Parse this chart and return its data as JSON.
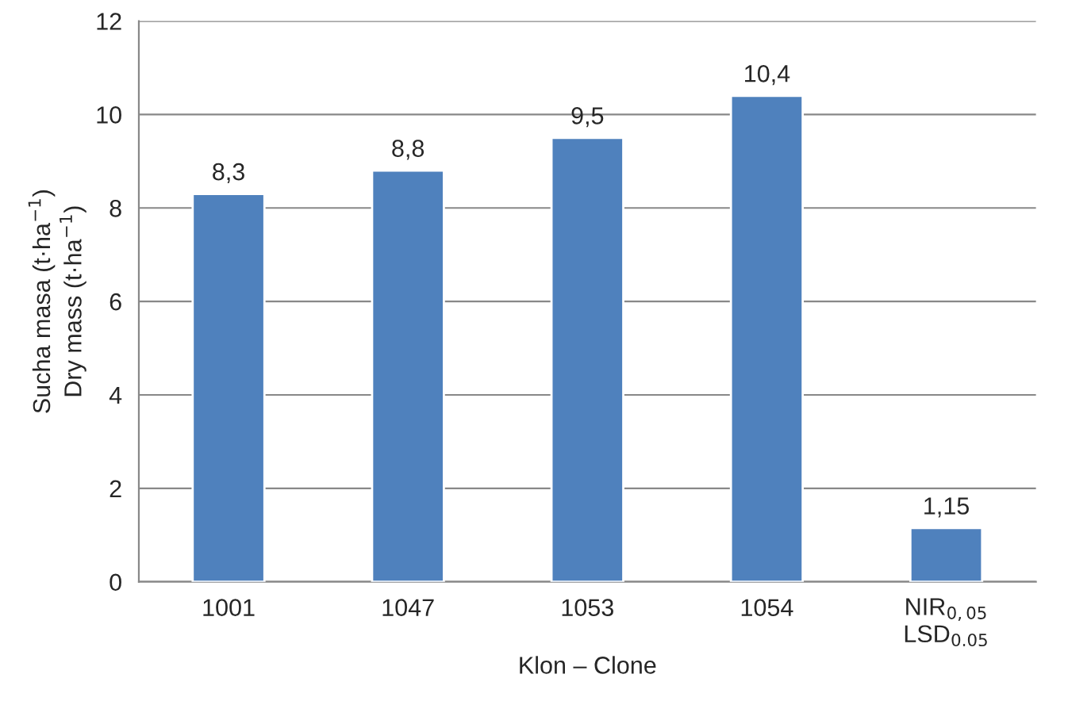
{
  "chart_data": {
    "type": "bar",
    "categories": [
      "1001",
      "1047",
      "1053",
      "1054",
      "NIR$_{0,05}$\nLSD$_{0.05}$"
    ],
    "values": [
      8.3,
      8.8,
      9.5,
      10.4,
      1.15
    ],
    "value_labels": [
      "8,3",
      "8,8",
      "9,5",
      "10,4",
      "1,15"
    ],
    "color": "#4f81bd",
    "xlabel": "Klon – Clone",
    "ylabel": "Sucha masa (t·ha$^{−1}$)\nDry mass (t·ha$^{−1}$)",
    "ylim": [
      0,
      12
    ],
    "yticks": [
      0,
      2,
      4,
      6,
      8,
      10,
      12
    ],
    "grid": "y"
  }
}
